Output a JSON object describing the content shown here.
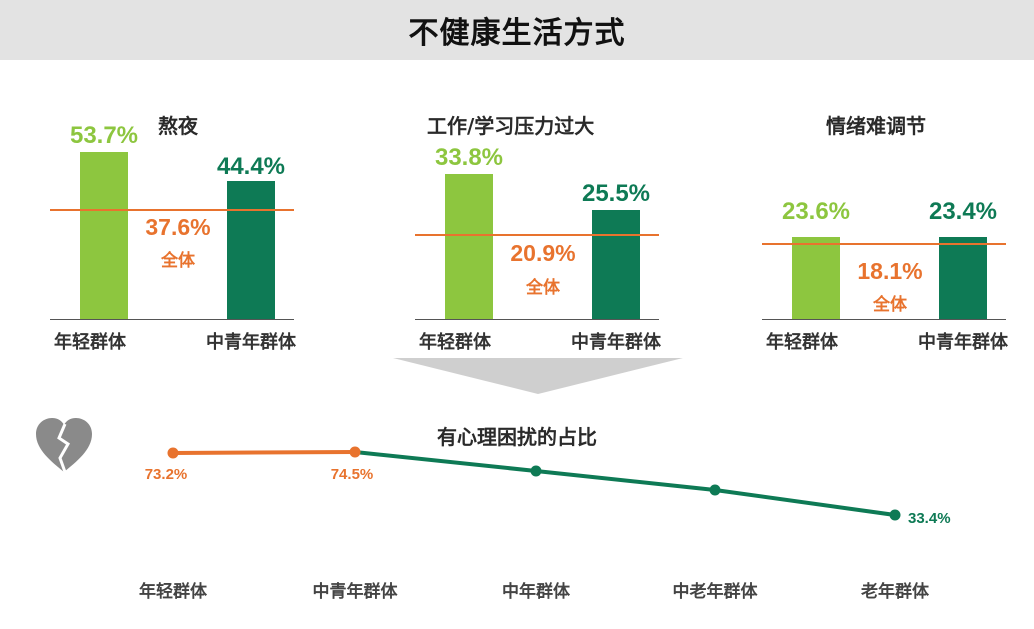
{
  "header": {
    "title": "不健康生活方式"
  },
  "colors": {
    "young": "#8dc63f",
    "middle": "#0e7a55",
    "overall": "#e8732e"
  },
  "icons": {
    "heart": "broken-heart-icon"
  },
  "chart_data": [
    {
      "type": "bar",
      "title": "熬夜",
      "categories": [
        "年轻群体",
        "中青年群体"
      ],
      "values": [
        53.7,
        44.4
      ],
      "value_labels": [
        "53.7%",
        "44.4%"
      ],
      "reference_line": {
        "value": 37.6,
        "value_label": "37.6%",
        "label": "全体"
      }
    },
    {
      "type": "bar",
      "title": "工作/学习压力过大",
      "categories": [
        "年轻群体",
        "中青年群体"
      ],
      "values": [
        33.8,
        25.5
      ],
      "value_labels": [
        "33.8%",
        "25.5%"
      ],
      "reference_line": {
        "value": 20.9,
        "value_label": "20.9%",
        "label": "全体"
      }
    },
    {
      "type": "bar",
      "title": "情绪难调节",
      "categories": [
        "年轻群体",
        "中青年群体"
      ],
      "values": [
        23.6,
        23.4
      ],
      "value_labels": [
        "23.6%",
        "23.4%"
      ],
      "reference_line": {
        "value": 18.1,
        "value_label": "18.1%",
        "label": "全体"
      }
    },
    {
      "type": "line",
      "title": "有心理困扰的占比",
      "categories": [
        "年轻群体",
        "中青年群体",
        "中年群体",
        "中老年群体",
        "老年群体"
      ],
      "values": [
        73.2,
        74.5,
        null,
        null,
        33.4
      ],
      "value_labels": [
        "73.2%",
        "74.5%",
        "",
        "",
        "33.4%"
      ]
    }
  ]
}
